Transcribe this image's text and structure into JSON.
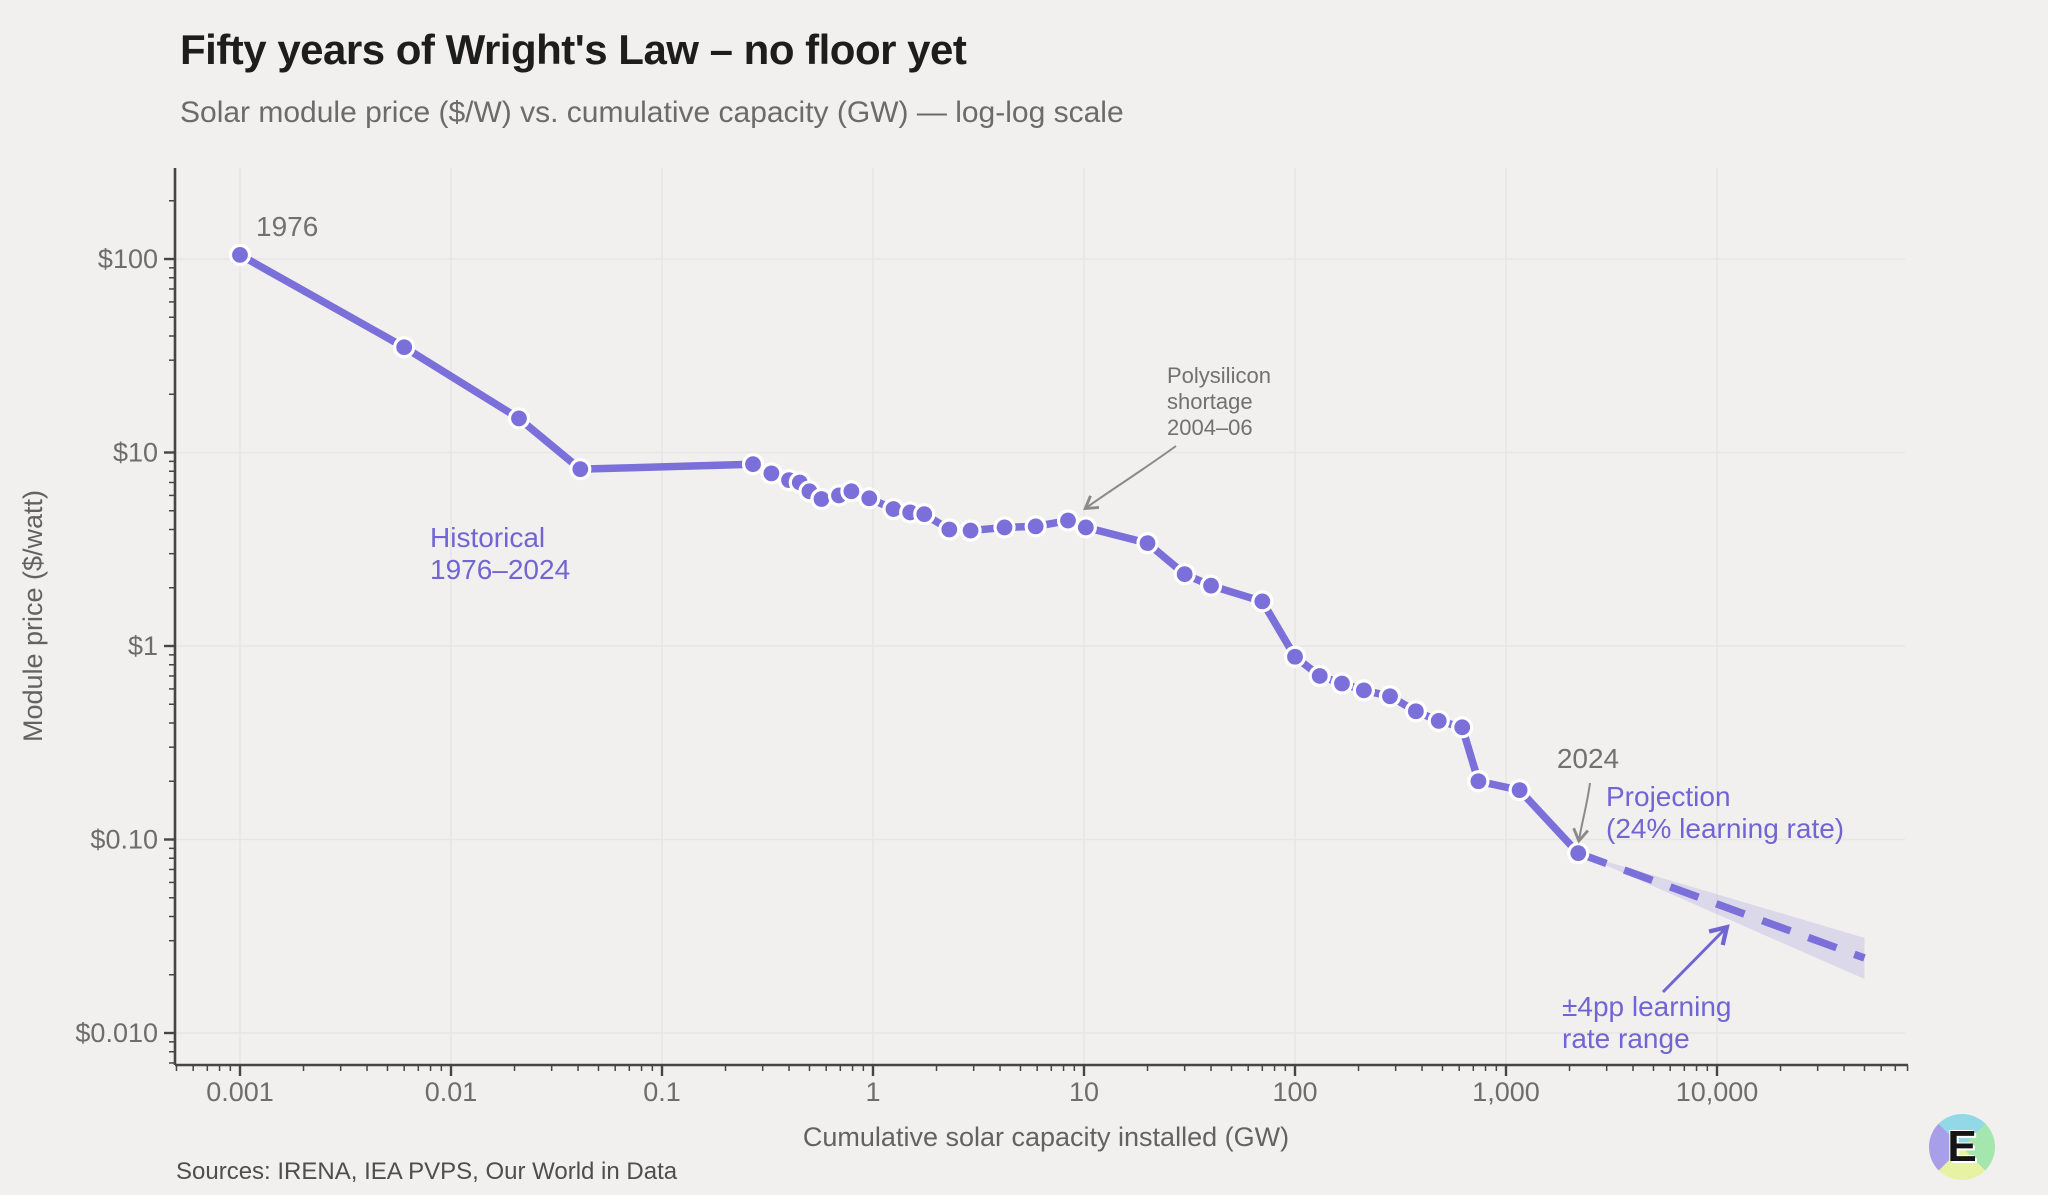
{
  "header": {
    "title": "Fifty years of Wright's Law – no floor yet",
    "subtitle": "Solar module price ($/W) vs. cumulative capacity (GW) — log-log scale"
  },
  "axes": {
    "x": {
      "title": "Cumulative solar capacity installed (GW)",
      "scale": "log",
      "tick_labels": [
        "0.001",
        "0.01",
        "0.1",
        "1",
        "10",
        "100",
        "1,000",
        "10,000"
      ],
      "tick_values": [
        0.001,
        0.01,
        0.1,
        1,
        10,
        100,
        1000,
        10000
      ]
    },
    "y": {
      "title": "Module price ($/watt)",
      "scale": "log",
      "tick_labels": [
        "$100",
        "$10",
        "$1",
        "$0.10",
        "$0.010"
      ],
      "tick_values": [
        100,
        10,
        1,
        0.1,
        0.01
      ]
    }
  },
  "annotations": {
    "start_year": "1976",
    "end_year": "2024",
    "historical_line1": "Historical",
    "historical_line2": "1976–2024",
    "poly_line1": "Polysilicon",
    "poly_line2": "shortage",
    "poly_line3": "2004–06",
    "projection_line1": "Projection",
    "projection_line2": "(24% learning rate)",
    "band_line1": "±4pp learning",
    "band_line2": "rate range"
  },
  "footer": {
    "sources": "Sources: IRENA, IEA PVPS, Our World in Data"
  },
  "colors": {
    "background": "#f1f0ee",
    "accent": "#7b70da",
    "accent_text": "#7165d4",
    "band_fill": "#7b70da",
    "grid": "#e7e6e4",
    "axis": "#454543",
    "tick_text": "#6e6d6b",
    "title_text": "#1d1d1b",
    "subtitle_text": "#6b6b69",
    "annotation_gray": "#717170",
    "point_ring": "#ffffff"
  },
  "chart_data": {
    "type": "line",
    "title": "Fifty years of Wright's Law – no floor yet",
    "xlabel": "Cumulative solar capacity installed (GW)",
    "ylabel": "Module price ($/watt)",
    "x_range": [
      0.0005,
      80000
    ],
    "y_range": [
      0.007,
      300
    ],
    "grid": true,
    "series": [
      {
        "name": "Historical 1976–2024",
        "style": "solid-with-markers",
        "points": [
          [
            0.001,
            105
          ],
          [
            0.006,
            35
          ],
          [
            0.021,
            15
          ],
          [
            0.041,
            8.2
          ],
          [
            0.27,
            8.7
          ],
          [
            0.33,
            7.8
          ],
          [
            0.4,
            7.2
          ],
          [
            0.45,
            7.0
          ],
          [
            0.5,
            6.3
          ],
          [
            0.57,
            5.75
          ],
          [
            0.69,
            6.0
          ],
          [
            0.79,
            6.3
          ],
          [
            0.96,
            5.8
          ],
          [
            1.25,
            5.1
          ],
          [
            1.5,
            4.9
          ],
          [
            1.75,
            4.8
          ],
          [
            2.3,
            4.0
          ],
          [
            2.9,
            3.95
          ],
          [
            4.2,
            4.1
          ],
          [
            5.9,
            4.15
          ],
          [
            8.4,
            4.45
          ],
          [
            10.2,
            4.1
          ],
          [
            20,
            3.4
          ],
          [
            30,
            2.35
          ],
          [
            40,
            2.05
          ],
          [
            70,
            1.7
          ],
          [
            100,
            0.88
          ],
          [
            131,
            0.7
          ],
          [
            167,
            0.64
          ],
          [
            212,
            0.59
          ],
          [
            282,
            0.55
          ],
          [
            374,
            0.46
          ],
          [
            480,
            0.41
          ],
          [
            620,
            0.38
          ],
          [
            740,
            0.2
          ],
          [
            1160,
            0.18
          ],
          [
            2200,
            0.085
          ]
        ]
      }
    ],
    "projection": {
      "name": "Projection (24% learning rate)",
      "style": "dashed",
      "learning_rate_pct": 24,
      "band_pp": 4,
      "x": [
        2200,
        50000
      ],
      "central": [
        0.085,
        0.0244
      ],
      "upper_end": 0.031,
      "lower_end": 0.019
    }
  }
}
